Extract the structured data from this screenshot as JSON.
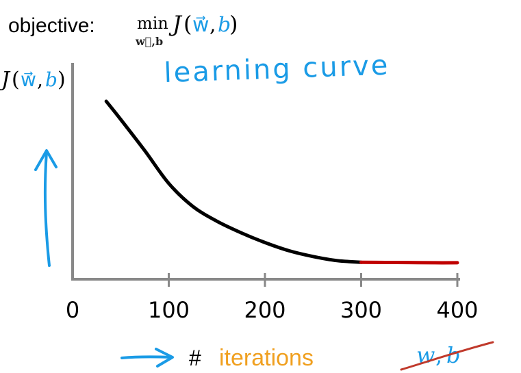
{
  "objective": {
    "label": "objective:",
    "min_word": "min",
    "min_sub": "w⃗,b",
    "func_J": "J",
    "func_open": "(",
    "func_w": "w⃗",
    "func_comma": ",",
    "func_b": "b",
    "func_close": ")"
  },
  "annotations": {
    "learning_curve": "learning curve",
    "hash": "#",
    "iterations": "iterations",
    "wb_w": "w",
    "wb_comma": ",",
    "wb_b": "b"
  },
  "colors": {
    "curve": "#000000",
    "flat_segment": "#c00000",
    "handwriting_blue": "#1a9be6",
    "iterations_orange": "#f0a020",
    "axis": "#888888",
    "strike_red": "#c0392b"
  },
  "chart_data": {
    "type": "line",
    "title": "",
    "xlabel": "# iterations",
    "ylabel": "J(w⃗,b)",
    "xlim": [
      0,
      400
    ],
    "ylim": [
      0,
      10
    ],
    "xticks": [
      0,
      100,
      200,
      300,
      400
    ],
    "xtick_labels": [
      "0",
      "100",
      "200",
      "300",
      "400"
    ],
    "ylabel_parts": {
      "J": "J",
      "open": "(",
      "w": "w⃗",
      "comma": ",",
      "b": "b",
      "close": ")"
    },
    "series": [
      {
        "x": [
          35,
          50,
          75,
          100,
          125,
          150,
          175,
          200,
          225,
          250,
          275,
          300
        ],
        "y": [
          10,
          8.9,
          7.0,
          5.0,
          3.6,
          2.7,
          2.0,
          1.4,
          0.9,
          0.55,
          0.3,
          0.2
        ],
        "color": "#000000"
      },
      {
        "x": [
          300,
          325,
          350,
          375,
          400
        ],
        "y": [
          0.2,
          0.19,
          0.18,
          0.17,
          0.17
        ],
        "color": "#c00000"
      }
    ],
    "grid": false
  }
}
